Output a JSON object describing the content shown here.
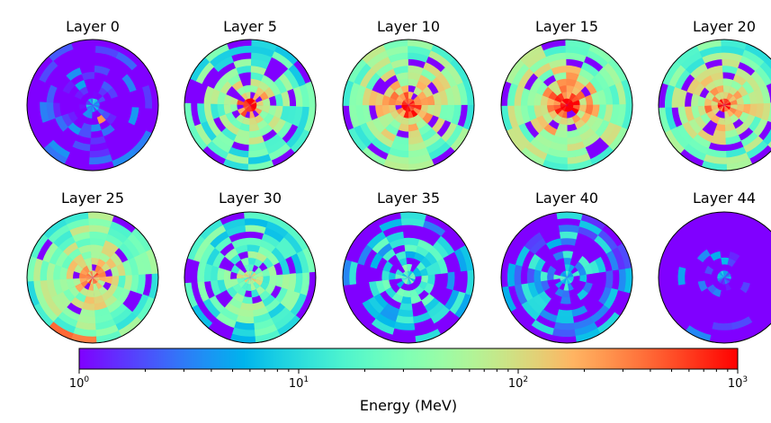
{
  "chart_data": {
    "type": "heatmap",
    "subtype": "polar-grid",
    "colormap": "rainbow",
    "color_scale": "log",
    "clim": [
      1,
      1000
    ],
    "grid": {
      "rings": 10,
      "sectors": 16
    },
    "panels": [
      {
        "title": "Layer 0",
        "mean_log": [
          0.6,
          0.35,
          0.3,
          0.25,
          0.25,
          0.2,
          0.2,
          0.15,
          0.15,
          0.1
        ],
        "hot": [
          [
            2,
            9,
            2.4
          ]
        ],
        "zero_fraction": 0.55,
        "seed": 11
      },
      {
        "title": "Layer 5",
        "mean_log": [
          3.0,
          2.3,
          1.95,
          1.75,
          1.6,
          1.5,
          1.4,
          1.35,
          1.3,
          1.25
        ],
        "hot": [],
        "zero_fraction": 0.18,
        "seed": 23
      },
      {
        "title": "Layer 10",
        "mean_log": [
          3.0,
          2.55,
          2.25,
          2.0,
          1.85,
          1.75,
          1.65,
          1.55,
          1.5,
          1.45
        ],
        "hot": [],
        "zero_fraction": 0.12,
        "seed": 37
      },
      {
        "title": "Layer 15",
        "mean_log": [
          3.0,
          2.6,
          2.3,
          2.1,
          1.95,
          1.8,
          1.7,
          1.6,
          1.55,
          1.5
        ],
        "hot": [],
        "zero_fraction": 0.12,
        "seed": 41
      },
      {
        "title": "Layer 20",
        "mean_log": [
          2.8,
          2.4,
          2.15,
          1.95,
          1.8,
          1.7,
          1.6,
          1.5,
          1.45,
          1.4
        ],
        "hot": [],
        "zero_fraction": 0.14,
        "seed": 53
      },
      {
        "title": "Layer 25",
        "mean_log": [
          2.4,
          2.1,
          1.95,
          1.8,
          1.7,
          1.6,
          1.55,
          1.5,
          1.45,
          1.4
        ],
        "hot": [
          [
            9,
            6,
            2.6
          ],
          [
            9,
            7,
            2.5
          ]
        ],
        "zero_fraction": 0.14,
        "seed": 61
      },
      {
        "title": "Layer 30",
        "mean_log": [
          1.7,
          1.6,
          1.5,
          1.45,
          1.4,
          1.35,
          1.3,
          1.25,
          1.2,
          1.15
        ],
        "hot": [],
        "zero_fraction": 0.2,
        "seed": 71
      },
      {
        "title": "Layer 35",
        "mean_log": [
          1.2,
          1.15,
          1.1,
          1.05,
          1.0,
          1.0,
          0.95,
          0.9,
          0.85,
          0.8
        ],
        "hot": [],
        "zero_fraction": 0.4,
        "seed": 83
      },
      {
        "title": "Layer 40",
        "mean_log": [
          1.0,
          0.9,
          0.85,
          0.8,
          0.75,
          0.7,
          0.7,
          0.65,
          0.6,
          0.6
        ],
        "hot": [],
        "zero_fraction": 0.62,
        "seed": 97
      },
      {
        "title": "Layer 44",
        "mean_log": [
          0.5,
          0.45,
          0.4,
          0.35,
          0.3,
          0.3,
          0.25,
          0.25,
          0.2,
          0.2
        ],
        "hot": [],
        "zero_fraction": 0.85,
        "seed": 101
      }
    ],
    "colorbar": {
      "label": "Energy (MeV)",
      "ticks": [
        {
          "value": 1,
          "base": "10",
          "exp": "0"
        },
        {
          "value": 10,
          "base": "10",
          "exp": "1"
        },
        {
          "value": 100,
          "base": "10",
          "exp": "2"
        },
        {
          "value": 1000,
          "base": "10",
          "exp": "3"
        }
      ]
    }
  }
}
